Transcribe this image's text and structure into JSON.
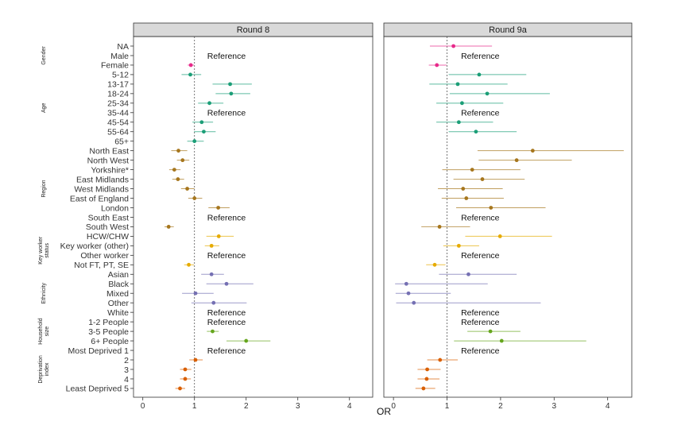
{
  "chart_data": {
    "type": "scatter",
    "xlabel": "OR",
    "xlim": [
      -0.18,
      4.45
    ],
    "xticks": [
      0,
      1,
      2,
      3,
      4
    ],
    "reference_line": 1,
    "grid": false,
    "panels": [
      "Round 8",
      "Round 9a"
    ],
    "reference_label": "Reference",
    "groups": [
      {
        "name": "Gender",
        "color": "#e7298a",
        "rows": [
          "NA",
          "Male",
          "Female"
        ]
      },
      {
        "name": "Age",
        "color": "#1b9e77",
        "rows": [
          "5-12",
          "13-17",
          "18-24",
          "25-34",
          "35-44",
          "45-54",
          "55-64",
          "65+"
        ]
      },
      {
        "name": "Region",
        "color": "#a6761d",
        "rows": [
          "North East",
          "North West",
          "Yorkshire*",
          "East Midlands",
          "West Midlands",
          "East of England",
          "London",
          "South East",
          "South West"
        ]
      },
      {
        "name": "Key worker status",
        "color": "#e6ab02",
        "rows": [
          "HCW/CHW",
          "Key worker (other)",
          "Other worker",
          "Not FT, PT, SE"
        ]
      },
      {
        "name": "Ethnicity",
        "color": "#7570b3",
        "rows": [
          "Asian",
          "Black",
          "Mixed",
          "Other",
          "White"
        ]
      },
      {
        "name": "Household size",
        "color": "#66a61e",
        "rows": [
          "1-2 People",
          "3-5 People",
          "6+ People"
        ]
      },
      {
        "name": "Deprivation index",
        "color": "#d95f02",
        "rows": [
          "Most Deprived 1",
          "2",
          "3",
          "4",
          "Least Deprived 5"
        ]
      }
    ],
    "series": [
      {
        "name": "Round 8",
        "points": [
          {
            "row": "NA",
            "or": null,
            "lo": null,
            "hi": null
          },
          {
            "row": "Male",
            "reference": true
          },
          {
            "row": "Female",
            "or": 0.93,
            "lo": 0.87,
            "hi": 0.99
          },
          {
            "row": "5-12",
            "or": 0.92,
            "lo": 0.75,
            "hi": 1.13
          },
          {
            "row": "13-17",
            "or": 1.69,
            "lo": 1.35,
            "hi": 2.11
          },
          {
            "row": "18-24",
            "or": 1.71,
            "lo": 1.41,
            "hi": 2.08
          },
          {
            "row": "25-34",
            "or": 1.29,
            "lo": 1.07,
            "hi": 1.56
          },
          {
            "row": "35-44",
            "reference": true
          },
          {
            "row": "45-54",
            "or": 1.14,
            "lo": 0.96,
            "hi": 1.36
          },
          {
            "row": "55-64",
            "or": 1.18,
            "lo": 0.99,
            "hi": 1.41
          },
          {
            "row": "65+",
            "or": 1.0,
            "lo": 0.86,
            "hi": 1.18
          },
          {
            "row": "North East",
            "or": 0.69,
            "lo": 0.55,
            "hi": 0.86
          },
          {
            "row": "North West",
            "or": 0.77,
            "lo": 0.66,
            "hi": 0.9
          },
          {
            "row": "Yorkshire*",
            "or": 0.61,
            "lo": 0.51,
            "hi": 0.73
          },
          {
            "row": "East Midlands",
            "or": 0.68,
            "lo": 0.57,
            "hi": 0.8
          },
          {
            "row": "West Midlands",
            "or": 0.86,
            "lo": 0.74,
            "hi": 1.0
          },
          {
            "row": "East of England",
            "or": 1.0,
            "lo": 0.88,
            "hi": 1.15
          },
          {
            "row": "London",
            "or": 1.46,
            "lo": 1.27,
            "hi": 1.68
          },
          {
            "row": "South East",
            "reference": true
          },
          {
            "row": "South West",
            "or": 0.5,
            "lo": 0.42,
            "hi": 0.6
          },
          {
            "row": "HCW/CHW",
            "or": 1.47,
            "lo": 1.23,
            "hi": 1.76
          },
          {
            "row": "Key worker (other)",
            "or": 1.33,
            "lo": 1.2,
            "hi": 1.48
          },
          {
            "row": "Other worker",
            "reference": true
          },
          {
            "row": "Not FT, PT, SE",
            "or": 0.89,
            "lo": 0.8,
            "hi": 0.99
          },
          {
            "row": "Asian",
            "or": 1.33,
            "lo": 1.13,
            "hi": 1.57
          },
          {
            "row": "Black",
            "or": 1.62,
            "lo": 1.23,
            "hi": 2.14
          },
          {
            "row": "Mixed",
            "or": 1.02,
            "lo": 0.76,
            "hi": 1.37
          },
          {
            "row": "Other",
            "or": 1.37,
            "lo": 0.94,
            "hi": 2.01
          },
          {
            "row": "White",
            "reference": true
          },
          {
            "row": "1-2 People",
            "reference": true
          },
          {
            "row": "3-5 People",
            "or": 1.35,
            "lo": 1.24,
            "hi": 1.47
          },
          {
            "row": "6+ People",
            "or": 2.0,
            "lo": 1.62,
            "hi": 2.47
          },
          {
            "row": "Most Deprived 1",
            "reference": true
          },
          {
            "row": "2",
            "or": 1.02,
            "lo": 0.9,
            "hi": 1.16
          },
          {
            "row": "3",
            "or": 0.82,
            "lo": 0.72,
            "hi": 0.94
          },
          {
            "row": "4",
            "or": 0.82,
            "lo": 0.72,
            "hi": 0.93
          },
          {
            "row": "Least Deprived 5",
            "or": 0.72,
            "lo": 0.63,
            "hi": 0.82
          }
        ]
      },
      {
        "name": "Round 9a",
        "points": [
          {
            "row": "NA",
            "or": 1.12,
            "lo": 0.68,
            "hi": 1.84
          },
          {
            "row": "Male",
            "reference": true
          },
          {
            "row": "Female",
            "or": 0.81,
            "lo": 0.66,
            "hi": 0.99
          },
          {
            "row": "5-12",
            "or": 1.6,
            "lo": 1.03,
            "hi": 2.48
          },
          {
            "row": "13-17",
            "or": 1.2,
            "lo": 0.67,
            "hi": 2.13
          },
          {
            "row": "18-24",
            "or": 1.75,
            "lo": 1.05,
            "hi": 2.92
          },
          {
            "row": "25-34",
            "or": 1.28,
            "lo": 0.8,
            "hi": 2.05
          },
          {
            "row": "35-44",
            "reference": true
          },
          {
            "row": "45-54",
            "or": 1.22,
            "lo": 0.8,
            "hi": 1.86
          },
          {
            "row": "55-64",
            "or": 1.54,
            "lo": 1.03,
            "hi": 2.3
          },
          {
            "row": "65+",
            "or": null,
            "lo": null,
            "hi": null
          },
          {
            "row": "North East",
            "or": 2.6,
            "lo": 1.57,
            "hi": 4.3
          },
          {
            "row": "North West",
            "or": 2.3,
            "lo": 1.59,
            "hi": 3.33
          },
          {
            "row": "Yorkshire*",
            "or": 1.47,
            "lo": 0.91,
            "hi": 2.37
          },
          {
            "row": "East Midlands",
            "or": 1.66,
            "lo": 1.12,
            "hi": 2.45
          },
          {
            "row": "West Midlands",
            "or": 1.3,
            "lo": 0.83,
            "hi": 2.04
          },
          {
            "row": "East of England",
            "or": 1.36,
            "lo": 0.9,
            "hi": 2.06
          },
          {
            "row": "London",
            "or": 1.82,
            "lo": 1.17,
            "hi": 2.84
          },
          {
            "row": "South East",
            "reference": true
          },
          {
            "row": "South West",
            "or": 0.86,
            "lo": 0.52,
            "hi": 1.43
          },
          {
            "row": "HCW/CHW",
            "or": 1.99,
            "lo": 1.34,
            "hi": 2.96
          },
          {
            "row": "Key worker (other)",
            "or": 1.22,
            "lo": 0.93,
            "hi": 1.6
          },
          {
            "row": "Other worker",
            "reference": true
          },
          {
            "row": "Not FT, PT, SE",
            "or": 0.77,
            "lo": 0.61,
            "hi": 0.97
          },
          {
            "row": "Asian",
            "or": 1.4,
            "lo": 0.85,
            "hi": 2.3
          },
          {
            "row": "Black",
            "or": 0.24,
            "lo": 0.03,
            "hi": 1.76
          },
          {
            "row": "Mixed",
            "or": 0.28,
            "lo": 0.04,
            "hi": 1.07
          },
          {
            "row": "Other",
            "or": 0.38,
            "lo": 0.05,
            "hi": 2.75
          },
          {
            "row": "White",
            "reference": true
          },
          {
            "row": "1-2 People",
            "reference": true
          },
          {
            "row": "3-5 People",
            "or": 1.81,
            "lo": 1.38,
            "hi": 2.37
          },
          {
            "row": "6+ People",
            "or": 2.02,
            "lo": 1.13,
            "hi": 3.6
          },
          {
            "row": "Most Deprived 1",
            "reference": true
          },
          {
            "row": "2",
            "or": 0.87,
            "lo": 0.63,
            "hi": 1.2
          },
          {
            "row": "3",
            "or": 0.63,
            "lo": 0.45,
            "hi": 0.88
          },
          {
            "row": "4",
            "or": 0.62,
            "lo": 0.45,
            "hi": 0.86
          },
          {
            "row": "Least Deprived 5",
            "or": 0.56,
            "lo": 0.41,
            "hi": 0.78
          }
        ]
      }
    ]
  }
}
